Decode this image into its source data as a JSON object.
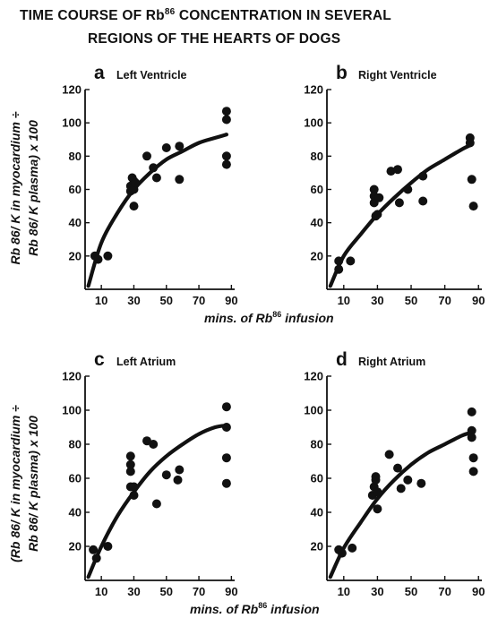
{
  "title": {
    "line1": "TIME COURSE OF  Rb",
    "line1_sup": "86",
    "line1_rest": " CONCENTRATION IN SEVERAL",
    "line2": "REGIONS OF THE HEARTS OF DOGS"
  },
  "axis_titles": {
    "x_base": "mins.  of  Rb",
    "x_sup": "86",
    "x_rest": "  infusion",
    "y_top_line1": "Rb 86/ K in myocardium ÷",
    "y_top_line2": "Rb 86/ K plasma) x 100",
    "y_bottom_line1": "(Rb 86/ K in myocardium ÷",
    "y_bottom_line2": "Rb 86/ K plasma) x 100"
  },
  "chart_data": [
    {
      "type": "scatter",
      "panel": "a",
      "title": "Left  Ventricle",
      "xlabel": "mins. of Rb86 infusion",
      "ylabel": "Rb86/K in myocardium ÷ Rb86/K plasma) x 100",
      "x_ticks": [
        10,
        30,
        50,
        70,
        90
      ],
      "y_ticks": [
        20,
        40,
        60,
        80,
        100,
        120
      ],
      "xlim": [
        0,
        92
      ],
      "ylim": [
        0,
        120
      ],
      "grid": false,
      "points": [
        [
          6,
          20
        ],
        [
          8,
          18
        ],
        [
          14,
          20
        ],
        [
          28,
          59
        ],
        [
          28,
          62
        ],
        [
          29,
          67
        ],
        [
          30,
          60
        ],
        [
          30,
          65
        ],
        [
          30,
          50
        ],
        [
          31,
          64
        ],
        [
          38,
          80
        ],
        [
          42,
          73
        ],
        [
          44,
          67
        ],
        [
          50,
          85
        ],
        [
          58,
          86
        ],
        [
          58,
          66
        ],
        [
          87,
          107
        ],
        [
          87,
          102
        ],
        [
          87,
          80
        ],
        [
          87,
          75
        ]
      ],
      "fit_curve": [
        [
          2,
          2
        ],
        [
          10,
          28
        ],
        [
          20,
          46
        ],
        [
          30,
          60
        ],
        [
          40,
          70
        ],
        [
          50,
          78
        ],
        [
          60,
          83
        ],
        [
          70,
          88
        ],
        [
          80,
          91
        ],
        [
          87,
          93
        ]
      ]
    },
    {
      "type": "scatter",
      "panel": "b",
      "title": "Right  Ventricle",
      "xlabel": "mins. of Rb86 infusion",
      "ylabel": "",
      "x_ticks": [
        10,
        30,
        50,
        70,
        90
      ],
      "y_ticks": [
        20,
        40,
        60,
        80,
        100,
        120
      ],
      "xlim": [
        0,
        92
      ],
      "ylim": [
        0,
        120
      ],
      "grid": false,
      "points": [
        [
          7,
          17
        ],
        [
          7,
          12
        ],
        [
          14,
          17
        ],
        [
          28,
          60
        ],
        [
          28,
          56
        ],
        [
          28,
          52
        ],
        [
          29,
          44
        ],
        [
          30,
          45
        ],
        [
          31,
          55
        ],
        [
          38,
          71
        ],
        [
          42,
          72
        ],
        [
          43,
          52
        ],
        [
          48,
          60
        ],
        [
          57,
          68
        ],
        [
          57,
          53
        ],
        [
          85,
          91
        ],
        [
          85,
          88
        ],
        [
          86,
          66
        ],
        [
          87,
          50
        ]
      ],
      "fit_curve": [
        [
          2,
          2
        ],
        [
          10,
          20
        ],
        [
          20,
          33
        ],
        [
          30,
          45
        ],
        [
          40,
          55
        ],
        [
          50,
          64
        ],
        [
          60,
          72
        ],
        [
          70,
          78
        ],
        [
          80,
          84
        ],
        [
          86,
          87
        ]
      ]
    },
    {
      "type": "scatter",
      "panel": "c",
      "title": "Left  Atrium",
      "xlabel": "mins. of Rb86 infusion",
      "ylabel": "(Rb86/K in myocardium ÷ Rb86/K plasma) x 100",
      "x_ticks": [
        10,
        30,
        50,
        70,
        90
      ],
      "y_ticks": [
        20,
        40,
        60,
        80,
        100,
        120
      ],
      "xlim": [
        0,
        92
      ],
      "ylim": [
        0,
        120
      ],
      "grid": false,
      "points": [
        [
          5,
          18
        ],
        [
          7,
          13
        ],
        [
          14,
          20
        ],
        [
          28,
          73
        ],
        [
          28,
          68
        ],
        [
          28,
          64
        ],
        [
          28,
          55
        ],
        [
          30,
          55
        ],
        [
          30,
          50
        ],
        [
          38,
          82
        ],
        [
          42,
          80
        ],
        [
          44,
          45
        ],
        [
          50,
          62
        ],
        [
          57,
          59
        ],
        [
          58,
          65
        ],
        [
          87,
          102
        ],
        [
          87,
          90
        ],
        [
          87,
          72
        ],
        [
          87,
          57
        ]
      ],
      "fit_curve": [
        [
          2,
          2
        ],
        [
          10,
          20
        ],
        [
          20,
          38
        ],
        [
          30,
          52
        ],
        [
          40,
          64
        ],
        [
          50,
          73
        ],
        [
          60,
          80
        ],
        [
          70,
          86
        ],
        [
          80,
          90
        ],
        [
          87,
          91
        ]
      ]
    },
    {
      "type": "scatter",
      "panel": "d",
      "title": "Right  Atrium",
      "xlabel": "mins. of Rb86 infusion",
      "ylabel": "",
      "x_ticks": [
        10,
        30,
        50,
        70,
        90
      ],
      "y_ticks": [
        20,
        40,
        60,
        80,
        100,
        120
      ],
      "xlim": [
        0,
        92
      ],
      "ylim": [
        0,
        120
      ],
      "grid": false,
      "points": [
        [
          7,
          18
        ],
        [
          9,
          16
        ],
        [
          15,
          19
        ],
        [
          27,
          50
        ],
        [
          28,
          55
        ],
        [
          29,
          59
        ],
        [
          29,
          61
        ],
        [
          30,
          42
        ],
        [
          30,
          52
        ],
        [
          37,
          74
        ],
        [
          42,
          66
        ],
        [
          44,
          54
        ],
        [
          48,
          59
        ],
        [
          56,
          57
        ],
        [
          86,
          99
        ],
        [
          86,
          88
        ],
        [
          86,
          84
        ],
        [
          87,
          72
        ],
        [
          87,
          64
        ]
      ],
      "fit_curve": [
        [
          2,
          2
        ],
        [
          10,
          19
        ],
        [
          20,
          34
        ],
        [
          30,
          48
        ],
        [
          40,
          59
        ],
        [
          50,
          68
        ],
        [
          60,
          75
        ],
        [
          70,
          80
        ],
        [
          80,
          85
        ],
        [
          86,
          87
        ]
      ]
    }
  ]
}
